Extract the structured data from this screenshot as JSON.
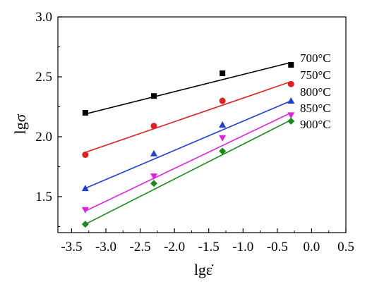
{
  "chart_data": {
    "type": "scatter",
    "xlabel": "lgε̇",
    "ylabel": "lgσ",
    "xlim": [
      -3.7,
      0.5
    ],
    "ylim": [
      1.2,
      3.0
    ],
    "x_ticks": [
      "-3.5",
      "-3.0",
      "-2.5",
      "-2.0",
      "-1.5",
      "-1.0",
      "-0.5",
      "0.0",
      "0.5"
    ],
    "y_ticks": [
      "1.5",
      "2.0",
      "2.5",
      "3.0"
    ],
    "grid": false,
    "legend_placement": "right, next to line ends",
    "series": [
      {
        "name": "700°C",
        "color": "#000000",
        "marker": "square",
        "x": [
          -3.3,
          -2.3,
          -1.3,
          -0.3
        ],
        "y": [
          2.2,
          2.34,
          2.53,
          2.6
        ],
        "fit": {
          "x": [
            -3.3,
            -0.3
          ],
          "y": [
            2.19,
            2.62
          ]
        }
      },
      {
        "name": "750°C",
        "color": "#e02020",
        "marker": "circle",
        "x": [
          -3.3,
          -2.3,
          -1.3,
          -0.3
        ],
        "y": [
          1.85,
          2.09,
          2.3,
          2.44
        ],
        "fit": {
          "x": [
            -3.3,
            -0.3
          ],
          "y": [
            1.87,
            2.46
          ]
        }
      },
      {
        "name": "800°C",
        "color": "#1a3ed6",
        "marker": "triangle-up",
        "x": [
          -3.3,
          -2.3,
          -1.3,
          -0.3
        ],
        "y": [
          1.57,
          1.86,
          2.1,
          2.3
        ],
        "fit": {
          "x": [
            -3.3,
            -0.3
          ],
          "y": [
            1.57,
            2.3
          ]
        }
      },
      {
        "name": "850°C",
        "color": "#e020e0",
        "marker": "triangle-down",
        "x": [
          -3.3,
          -2.3,
          -1.3,
          -0.3
        ],
        "y": [
          1.39,
          1.67,
          1.99,
          2.18
        ],
        "fit": {
          "x": [
            -3.3,
            -0.3
          ],
          "y": [
            1.38,
            2.2
          ]
        }
      },
      {
        "name": "900°C",
        "color": "#1a8a1a",
        "marker": "diamond",
        "x": [
          -3.3,
          -2.3,
          -1.3,
          -0.3
        ],
        "y": [
          1.27,
          1.61,
          1.88,
          2.13
        ],
        "fit": {
          "x": [
            -3.3,
            -0.3
          ],
          "y": [
            1.27,
            2.14
          ]
        }
      }
    ]
  }
}
